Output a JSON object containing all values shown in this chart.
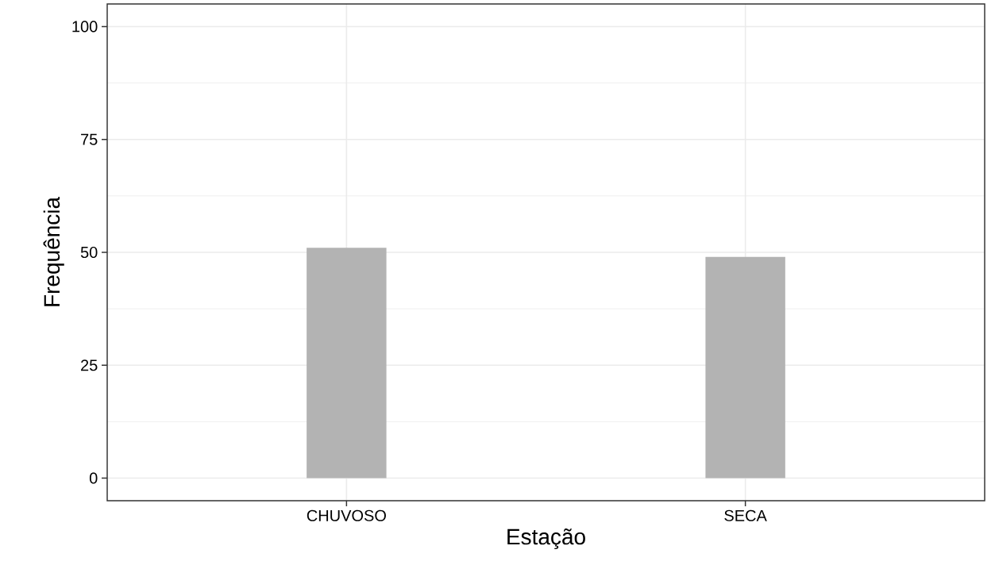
{
  "chart_data": {
    "type": "bar",
    "xlabel": "Estação",
    "ylabel": "Frequência",
    "categories": [
      "CHUVOSO",
      "SECA"
    ],
    "values": [
      51,
      49
    ],
    "color": "#b3b3b3",
    "ylim": [
      -5,
      105
    ],
    "yticks": [
      0,
      25,
      50,
      75,
      100
    ],
    "grid": true
  }
}
